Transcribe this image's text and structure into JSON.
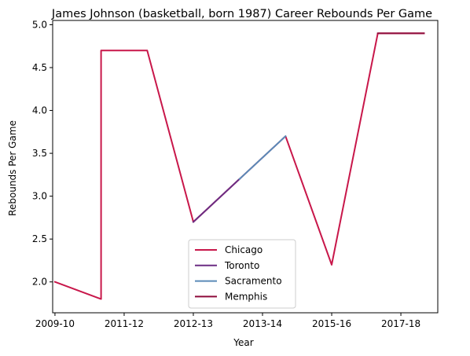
{
  "chart_data": {
    "type": "line",
    "title": "James Johnson (basketball, born 1987) Career Rebounds Per Game",
    "xlabel": "Year",
    "ylabel": "Rebounds Per Game",
    "ylim": [
      1.64,
      5.05
    ],
    "xlim": [
      -0.05,
      8.3
    ],
    "x_ticks": [
      "2009-10",
      "2011-12",
      "2012-13",
      "2013-14",
      "2015-16",
      "2017-18"
    ],
    "x_tick_positions": [
      0,
      1.5,
      3,
      4.5,
      6,
      7.5
    ],
    "y_ticks": [
      2.0,
      2.5,
      3.0,
      3.5,
      4.0,
      4.5,
      5.0
    ],
    "y_tick_labels": [
      "2.0",
      "2.5",
      "3.0",
      "3.5",
      "4.0",
      "4.5",
      "5.0"
    ],
    "legend_position": "lower center",
    "series": [
      {
        "name": "Chicago",
        "color": "#c8174a",
        "points": [
          [
            0,
            2.0
          ],
          [
            1,
            1.8
          ],
          [
            1,
            4.7
          ],
          [
            2,
            4.7
          ],
          [
            3,
            2.7
          ],
          [
            5,
            3.7
          ],
          [
            6,
            2.2
          ],
          [
            7,
            4.9
          ],
          [
            8,
            4.9
          ]
        ]
      },
      {
        "name": "Toronto",
        "color": "#6c2d83",
        "points": [
          [
            3,
            2.7
          ],
          [
            4,
            3.2
          ]
        ]
      },
      {
        "name": "Sacramento",
        "color": "#5a8ab8",
        "points": [
          [
            4,
            3.2
          ],
          [
            5,
            3.7
          ]
        ]
      },
      {
        "name": "Memphis",
        "color": "#8e0a3a",
        "points": [
          [
            7,
            4.9
          ],
          [
            8,
            4.9
          ]
        ]
      }
    ]
  }
}
